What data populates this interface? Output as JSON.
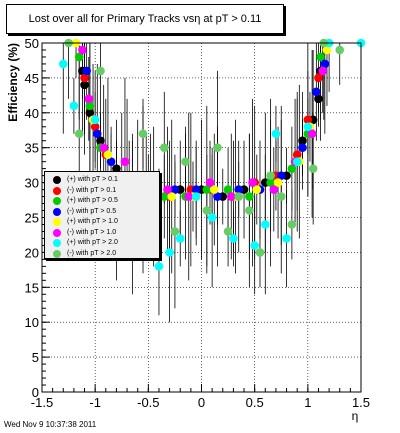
{
  "chart_data": {
    "type": "scatter",
    "title": "Lost over all for Primary Tracks vsη at pT > 0.11",
    "xlabel": "η",
    "ylabel": "Efficiency (%)",
    "xlim": [
      -1.5,
      1.5
    ],
    "ylim": [
      0,
      50
    ],
    "x_ticks": [
      "-1.5",
      "-1",
      "-0.5",
      "0",
      "0.5",
      "1",
      "1.5"
    ],
    "y_ticks": [
      "0",
      "5",
      "10",
      "15",
      "20",
      "25",
      "30",
      "35",
      "40",
      "45",
      "50"
    ],
    "grid": true,
    "legend_position": "left-middle",
    "series": [
      {
        "name": "(+) with pT > 0.1",
        "color": "#000000",
        "points": [
          [
            -1.12,
            46
          ],
          [
            -1.1,
            44
          ],
          [
            -1.05,
            40
          ],
          [
            -0.95,
            36
          ],
          [
            -0.8,
            32
          ],
          [
            -0.6,
            29
          ],
          [
            -0.4,
            28
          ],
          [
            -0.2,
            29
          ],
          [
            0,
            29
          ],
          [
            0.2,
            28
          ],
          [
            0.4,
            29
          ],
          [
            0.6,
            30
          ],
          [
            0.8,
            31
          ],
          [
            0.95,
            36
          ],
          [
            1.05,
            39
          ],
          [
            1.1,
            42
          ],
          [
            1.12,
            46
          ]
        ]
      },
      {
        "name": "(-) with pT > 0.1",
        "color": "#ff0000",
        "points": [
          [
            -1.1,
            45
          ],
          [
            -1.0,
            38
          ],
          [
            -0.9,
            34
          ],
          [
            -0.7,
            31
          ],
          [
            -0.5,
            29
          ],
          [
            -0.3,
            28
          ],
          [
            -0.1,
            29
          ],
          [
            0.1,
            29
          ],
          [
            0.3,
            28
          ],
          [
            0.5,
            30
          ],
          [
            0.7,
            31
          ],
          [
            0.9,
            34
          ],
          [
            1.0,
            39
          ],
          [
            1.1,
            45
          ]
        ]
      },
      {
        "name": "(+) with pT > 0.5",
        "color": "#00cc00",
        "points": [
          [
            -1.15,
            48
          ],
          [
            -1.05,
            41
          ],
          [
            -0.95,
            35
          ],
          [
            -0.75,
            31
          ],
          [
            -0.55,
            29
          ],
          [
            -0.35,
            28
          ],
          [
            -0.15,
            28
          ],
          [
            0.05,
            29
          ],
          [
            0.25,
            29
          ],
          [
            0.45,
            28
          ],
          [
            0.65,
            30
          ],
          [
            0.85,
            32
          ],
          [
            1.0,
            37
          ],
          [
            1.12,
            48
          ]
        ]
      },
      {
        "name": "(-) with pT > 0.5",
        "color": "#0000ff",
        "points": [
          [
            -1.08,
            46
          ],
          [
            -0.98,
            37
          ],
          [
            -0.85,
            33
          ],
          [
            -0.65,
            30
          ],
          [
            -0.45,
            28
          ],
          [
            -0.25,
            29
          ],
          [
            -0.05,
            29
          ],
          [
            0.15,
            28
          ],
          [
            0.35,
            29
          ],
          [
            0.55,
            29
          ],
          [
            0.75,
            31
          ],
          [
            0.95,
            35
          ],
          [
            1.08,
            43
          ],
          [
            1.16,
            47
          ]
        ]
      },
      {
        "name": "(+) with pT > 1.0",
        "color": "#ffff00",
        "points": [
          [
            -1.18,
            50
          ],
          [
            -1.02,
            39
          ],
          [
            -0.88,
            34
          ],
          [
            -0.68,
            31
          ],
          [
            -0.48,
            29
          ],
          [
            -0.28,
            28
          ],
          [
            -0.08,
            28
          ],
          [
            0.12,
            29
          ],
          [
            0.32,
            28
          ],
          [
            0.52,
            29
          ],
          [
            0.72,
            30
          ],
          [
            0.92,
            33
          ],
          [
            1.02,
            38
          ],
          [
            1.18,
            49
          ]
        ]
      },
      {
        "name": "(-) with pT > 1.0",
        "color": "#ff00ff",
        "points": [
          [
            -1.12,
            49
          ],
          [
            -1.06,
            42
          ],
          [
            -0.92,
            35
          ],
          [
            -0.72,
            33
          ],
          [
            -0.52,
            31
          ],
          [
            -0.32,
            29
          ],
          [
            -0.12,
            28
          ],
          [
            0.08,
            30
          ],
          [
            0.28,
            28
          ],
          [
            0.48,
            30
          ],
          [
            0.68,
            29
          ],
          [
            0.88,
            33
          ],
          [
            1.04,
            37
          ],
          [
            1.14,
            46
          ]
        ]
      },
      {
        "name": "(+) with pT > 2.0",
        "color": "#00ffff",
        "points": [
          [
            -1.3,
            47
          ],
          [
            -1.2,
            41
          ],
          [
            -1.0,
            39
          ],
          [
            -0.8,
            26
          ],
          [
            -0.6,
            24
          ],
          [
            -0.4,
            18
          ],
          [
            -0.3,
            20
          ],
          [
            -0.2,
            22
          ],
          [
            -0.05,
            28
          ],
          [
            0.1,
            25
          ],
          [
            0.3,
            22
          ],
          [
            0.5,
            21
          ],
          [
            0.6,
            24
          ],
          [
            0.7,
            37
          ],
          [
            0.8,
            22
          ],
          [
            0.9,
            33
          ],
          [
            1.0,
            38
          ],
          [
            1.2,
            50
          ],
          [
            1.5,
            50
          ]
        ]
      },
      {
        "name": "(-) with pT > 2.0",
        "color": "#66cc66",
        "points": [
          [
            -1.25,
            50
          ],
          [
            -1.15,
            37
          ],
          [
            -0.95,
            46
          ],
          [
            -0.85,
            30
          ],
          [
            -0.65,
            25
          ],
          [
            -0.55,
            37
          ],
          [
            -0.35,
            35
          ],
          [
            -0.25,
            23
          ],
          [
            -0.15,
            33
          ],
          [
            0.05,
            26
          ],
          [
            0.15,
            35
          ],
          [
            0.25,
            23
          ],
          [
            0.35,
            28
          ],
          [
            0.45,
            26
          ],
          [
            0.55,
            20
          ],
          [
            0.65,
            31
          ],
          [
            0.75,
            28
          ],
          [
            0.85,
            24
          ],
          [
            1.05,
            32
          ],
          [
            1.15,
            50
          ],
          [
            1.3,
            49
          ]
        ]
      }
    ]
  },
  "footer": {
    "timestamp": "Wed Nov  9 10:37:38 2011"
  }
}
